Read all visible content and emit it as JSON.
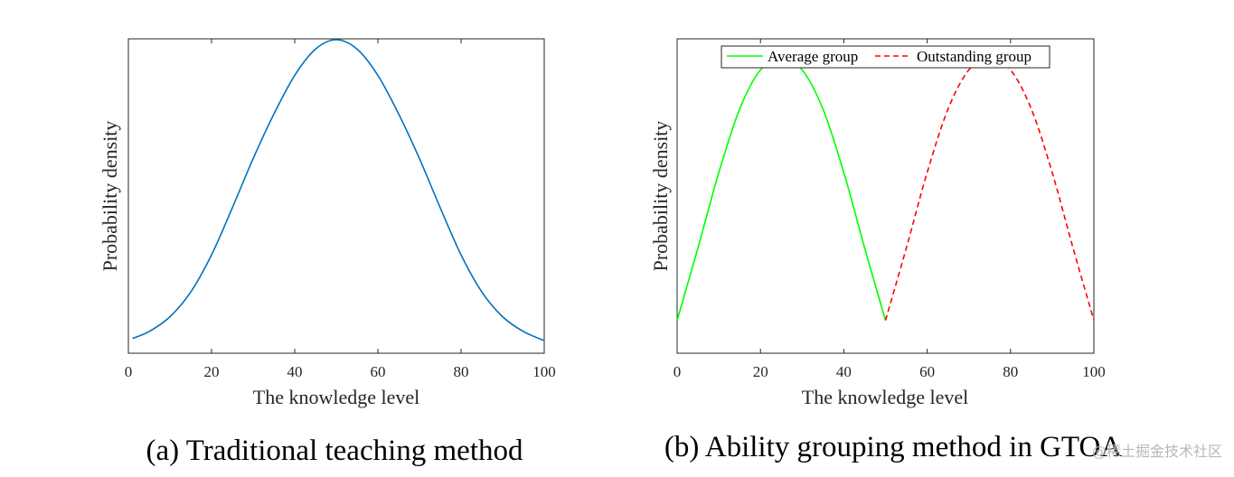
{
  "chart_data": [
    {
      "type": "line",
      "caption": "(a) Traditional teaching method",
      "xlabel": "The knowledge level",
      "ylabel": "Probability density",
      "xlim": [
        0,
        100
      ],
      "xticks": [
        "0",
        "20",
        "40",
        "60",
        "80",
        "100"
      ],
      "y_ticks_shown": false,
      "legend": null,
      "series": [
        {
          "style": "solid",
          "color": "#0072BD",
          "x": [
            1,
            5,
            10,
            15,
            20,
            25,
            30,
            35,
            40,
            45,
            50,
            55,
            60,
            65,
            70,
            75,
            80,
            85,
            90,
            95,
            100
          ],
          "y": [
            0.01,
            0.033,
            0.082,
            0.164,
            0.287,
            0.443,
            0.606,
            0.754,
            0.882,
            0.969,
            1.0,
            0.969,
            0.882,
            0.754,
            0.606,
            0.443,
            0.287,
            0.164,
            0.082,
            0.033,
            0.003
          ]
        }
      ]
    },
    {
      "type": "line",
      "caption": "(b) Ability grouping method in GTOA",
      "xlabel": "The knowledge level",
      "ylabel": "Probability density",
      "xlim": [
        0,
        100
      ],
      "xticks": [
        "0",
        "20",
        "40",
        "60",
        "80",
        "100"
      ],
      "y_ticks_shown": false,
      "legend": {
        "placement": "top-center"
      },
      "series": [
        {
          "name": "Average group",
          "style": "solid",
          "color": "#00FF00",
          "x": [
            0,
            5,
            10,
            15,
            20,
            25,
            30,
            35,
            40,
            45,
            50
          ],
          "y": [
            0.07,
            0.31,
            0.56,
            0.77,
            0.9,
            0.94,
            0.9,
            0.77,
            0.56,
            0.31,
            0.07
          ]
        },
        {
          "name": "Outstanding group",
          "style": "dashed",
          "color": "#FF0000",
          "x": [
            50,
            55,
            60,
            65,
            70,
            75,
            80,
            85,
            90,
            95,
            100
          ],
          "y": [
            0.07,
            0.31,
            0.56,
            0.77,
            0.9,
            0.94,
            0.9,
            0.77,
            0.56,
            0.31,
            0.07
          ]
        }
      ]
    }
  ],
  "watermark": "@稀土掘金技术社区"
}
